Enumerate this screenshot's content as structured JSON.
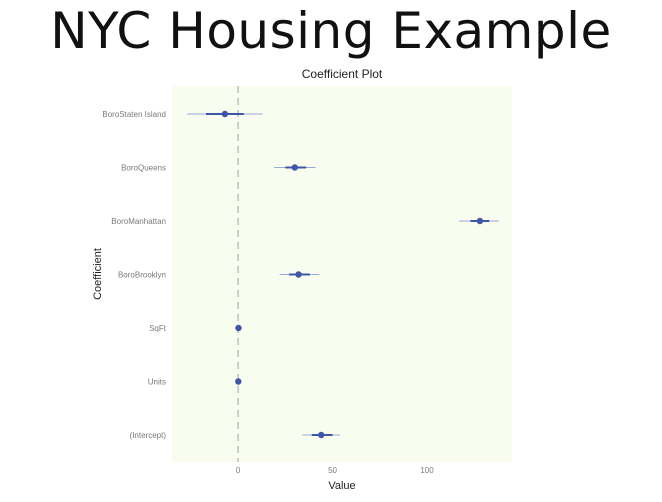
{
  "slide": {
    "title": "NYC Housing Example"
  },
  "chart_data": {
    "type": "scatter",
    "subtype": "coefficient-plot",
    "title": "Coefficient Plot",
    "xlabel": "Value",
    "ylabel": "Coefficient",
    "xlim": [
      -35,
      145
    ],
    "x_ticks": [
      0,
      50,
      100
    ],
    "reference_line": 0,
    "grid": false,
    "panel_color": "#f9fdf0",
    "point_color": "#3f56a7",
    "inner_interval_color": "#3f56a7",
    "outer_interval_color": "#98a8d8",
    "categories": [
      "BoroStaten Island",
      "BoroQueens",
      "BoroManhattan",
      "BoroBrooklyn",
      "SqFt",
      "Units",
      "(Intercept)"
    ],
    "series": [
      {
        "values": [
          -7,
          30,
          128,
          32,
          0.2,
          0.1,
          44
        ],
        "inner_low": [
          -17,
          25,
          123,
          27,
          -0.1,
          -0.1,
          39
        ],
        "inner_high": [
          3,
          36,
          133,
          38,
          0.5,
          0.3,
          50
        ],
        "outer_low": [
          -27,
          19,
          117,
          22,
          -0.4,
          -0.3,
          34
        ],
        "outer_high": [
          13,
          41,
          138,
          43,
          0.8,
          0.5,
          54
        ]
      }
    ]
  }
}
